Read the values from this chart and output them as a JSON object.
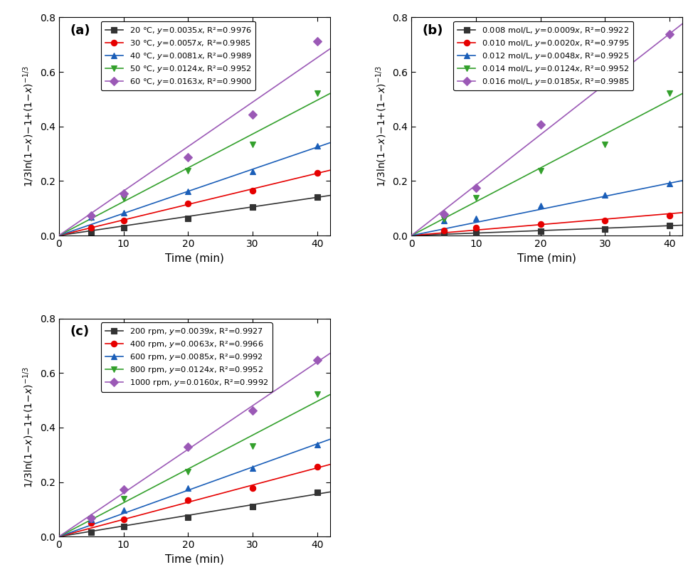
{
  "panel_a": {
    "label": "(a)",
    "series": [
      {
        "name": "20 °C",
        "slope_str": "0.0035",
        "slope": 0.0035,
        "R2": "0.9976",
        "color": "#333333",
        "marker": "s"
      },
      {
        "name": "30 °C",
        "slope_str": "0.0057",
        "slope": 0.0057,
        "R2": "0.9985",
        "color": "#e60000",
        "marker": "o"
      },
      {
        "name": "40 °C",
        "slope_str": "0.0081",
        "slope": 0.0081,
        "R2": "0.9989",
        "color": "#1a5eb8",
        "marker": "^"
      },
      {
        "name": "50 °C",
        "slope_str": "0.0124",
        "slope": 0.0124,
        "R2": "0.9952",
        "color": "#33a02c",
        "marker": "v"
      },
      {
        "name": "60 °C",
        "slope_str": "0.0163",
        "slope": 0.0163,
        "R2": "0.9900",
        "color": "#9b59b6",
        "marker": "D"
      }
    ],
    "data_x": [
      5,
      10,
      20,
      30,
      40
    ],
    "data_y": [
      [
        0.013,
        0.03,
        0.063,
        0.105,
        0.14
      ],
      [
        0.03,
        0.055,
        0.118,
        0.165,
        0.23
      ],
      [
        0.067,
        0.083,
        0.162,
        0.234,
        0.328
      ],
      [
        0.065,
        0.135,
        0.238,
        0.333,
        0.522
      ],
      [
        0.073,
        0.153,
        0.287,
        0.443,
        0.712
      ]
    ]
  },
  "panel_b": {
    "label": "(b)",
    "series": [
      {
        "name": "0.008 mol/L",
        "slope_str": "0.0009",
        "slope": 0.0009,
        "R2": "0.9922",
        "color": "#333333",
        "marker": "s"
      },
      {
        "name": "0.010 mol/L",
        "slope_str": "0.0020",
        "slope": 0.002,
        "R2": "0.9795",
        "color": "#e60000",
        "marker": "o"
      },
      {
        "name": "0.012 mol/L",
        "slope_str": "0.0048",
        "slope": 0.0048,
        "R2": "0.9925",
        "color": "#1a5eb8",
        "marker": "^"
      },
      {
        "name": "0.014 mol/L",
        "slope_str": "0.0124",
        "slope": 0.0124,
        "R2": "0.9952",
        "color": "#33a02c",
        "marker": "v"
      },
      {
        "name": "0.016 mol/L",
        "slope_str": "0.0185",
        "slope": 0.0185,
        "R2": "0.9985",
        "color": "#9b59b6",
        "marker": "D"
      }
    ],
    "data_x": [
      5,
      10,
      20,
      30,
      40
    ],
    "data_y": [
      [
        0.007,
        0.011,
        0.015,
        0.024,
        0.036
      ],
      [
        0.018,
        0.028,
        0.041,
        0.055,
        0.074
      ],
      [
        0.055,
        0.063,
        0.109,
        0.149,
        0.19
      ],
      [
        0.059,
        0.138,
        0.237,
        0.333,
        0.522
      ],
      [
        0.079,
        0.175,
        0.406,
        0.547,
        0.737
      ]
    ]
  },
  "panel_c": {
    "label": "(c)",
    "series": [
      {
        "name": "200 rpm",
        "slope_str": "0.0039",
        "slope": 0.0039,
        "R2": "0.9927",
        "color": "#333333",
        "marker": "s"
      },
      {
        "name": "400 rpm",
        "slope_str": "0.0063",
        "slope": 0.0063,
        "R2": "0.9966",
        "color": "#e60000",
        "marker": "o"
      },
      {
        "name": "600 rpm",
        "slope_str": "0.0085",
        "slope": 0.0085,
        "R2": "0.9992",
        "color": "#1a5eb8",
        "marker": "^"
      },
      {
        "name": "800 rpm",
        "slope_str": "0.0124",
        "slope": 0.0124,
        "R2": "0.9952",
        "color": "#33a02c",
        "marker": "v"
      },
      {
        "name": "1000 rpm",
        "slope_str": "0.0160",
        "slope": 0.016,
        "R2": "0.9992",
        "color": "#9b59b6",
        "marker": "D"
      }
    ],
    "data_x": [
      5,
      10,
      20,
      30,
      40
    ],
    "data_y": [
      [
        0.015,
        0.038,
        0.072,
        0.11,
        0.163
      ],
      [
        0.05,
        0.063,
        0.134,
        0.178,
        0.257
      ],
      [
        0.062,
        0.098,
        0.178,
        0.25,
        0.337
      ],
      [
        0.065,
        0.14,
        0.238,
        0.333,
        0.522
      ],
      [
        0.068,
        0.172,
        0.329,
        0.462,
        0.648
      ]
    ]
  },
  "xlabel": "Time (min)",
  "ylabel": "1/3ln(1-x)-1+(1-x)⁻¹ᐟ³",
  "xlim": [
    0,
    42
  ],
  "ylim": [
    0,
    0.8
  ],
  "xticks": [
    0,
    10,
    20,
    30,
    40
  ],
  "yticks": [
    0.0,
    0.2,
    0.4,
    0.6,
    0.8
  ],
  "line_x": [
    0,
    42
  ]
}
